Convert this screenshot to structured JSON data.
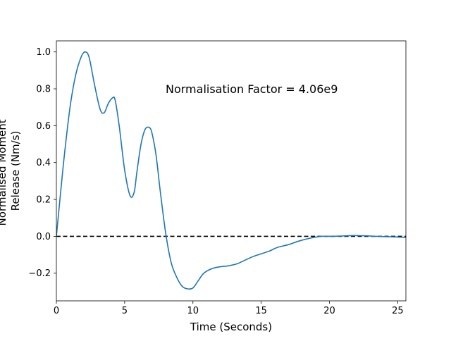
{
  "chart_data": {
    "type": "line",
    "xlabel": "Time (Seconds)",
    "ylabel_lines": [
      "Normalised Moment",
      "Release (Nm/s)"
    ],
    "annotation": "Normalisation Factor = 4.06e9",
    "xlim": [
      0,
      25.6
    ],
    "ylim": [
      -0.35,
      1.06
    ],
    "xticks": [
      0,
      5,
      10,
      15,
      20,
      25
    ],
    "xtick_labels": [
      "0",
      "5",
      "10",
      "15",
      "20",
      "25"
    ],
    "yticks": [
      -0.2,
      0.0,
      0.2,
      0.4,
      0.6,
      0.8,
      1.0
    ],
    "ytick_labels": [
      "−0.2",
      "0.0",
      "0.2",
      "0.4",
      "0.6",
      "0.8",
      "1.0"
    ],
    "grid": false,
    "reference_line": {
      "y": 0.0,
      "style": "dashed",
      "color": "#000000"
    },
    "series": [
      {
        "color": "#1f77b4",
        "x": [
          0,
          0.3,
          0.6,
          1.0,
          1.4,
          1.8,
          2.1,
          2.4,
          2.8,
          3.2,
          3.5,
          3.8,
          4.1,
          4.3,
          4.6,
          5.0,
          5.4,
          5.7,
          5.9,
          6.2,
          6.5,
          6.8,
          7.0,
          7.3,
          7.6,
          8.0,
          8.4,
          8.8,
          9.2,
          9.6,
          10.0,
          10.4,
          10.8,
          11.4,
          12.0,
          12.6,
          13.2,
          13.8,
          14.4,
          15.0,
          15.6,
          16.2,
          17.0,
          17.8,
          18.6,
          19.4,
          20.2,
          21.0,
          21.8,
          22.6,
          23.4,
          24.2,
          25.0,
          25.6
        ],
        "y": [
          0.0,
          0.23,
          0.45,
          0.7,
          0.87,
          0.97,
          1.0,
          0.97,
          0.82,
          0.69,
          0.67,
          0.72,
          0.75,
          0.74,
          0.6,
          0.36,
          0.22,
          0.24,
          0.35,
          0.5,
          0.58,
          0.59,
          0.56,
          0.44,
          0.25,
          0.02,
          -0.14,
          -0.22,
          -0.27,
          -0.285,
          -0.28,
          -0.24,
          -0.2,
          -0.175,
          -0.165,
          -0.16,
          -0.15,
          -0.13,
          -0.11,
          -0.095,
          -0.08,
          -0.06,
          -0.045,
          -0.025,
          -0.01,
          0.0,
          0.0,
          0.002,
          0.004,
          0.003,
          0.0,
          -0.002,
          -0.004,
          -0.006
        ]
      }
    ]
  }
}
